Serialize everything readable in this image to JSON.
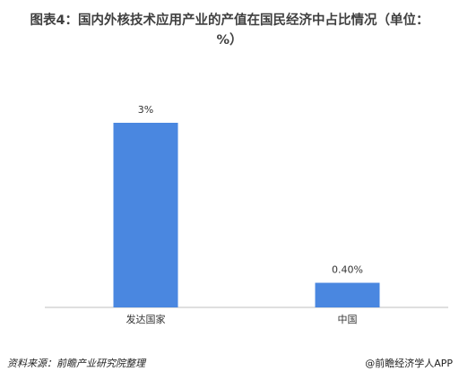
{
  "chart_data": {
    "type": "bar",
    "title": "图表4：国内外核技术应用产业的产值在国民经济中占比情况（单位：%）",
    "categories": [
      "发达国家",
      "中国"
    ],
    "values": [
      3,
      0.4
    ],
    "value_labels": [
      "3%",
      "0.40%"
    ],
    "color": "#4a87e0",
    "source": "资料来源：前瞻产业研究院整理",
    "credit": "@前瞻经济学人APP"
  }
}
